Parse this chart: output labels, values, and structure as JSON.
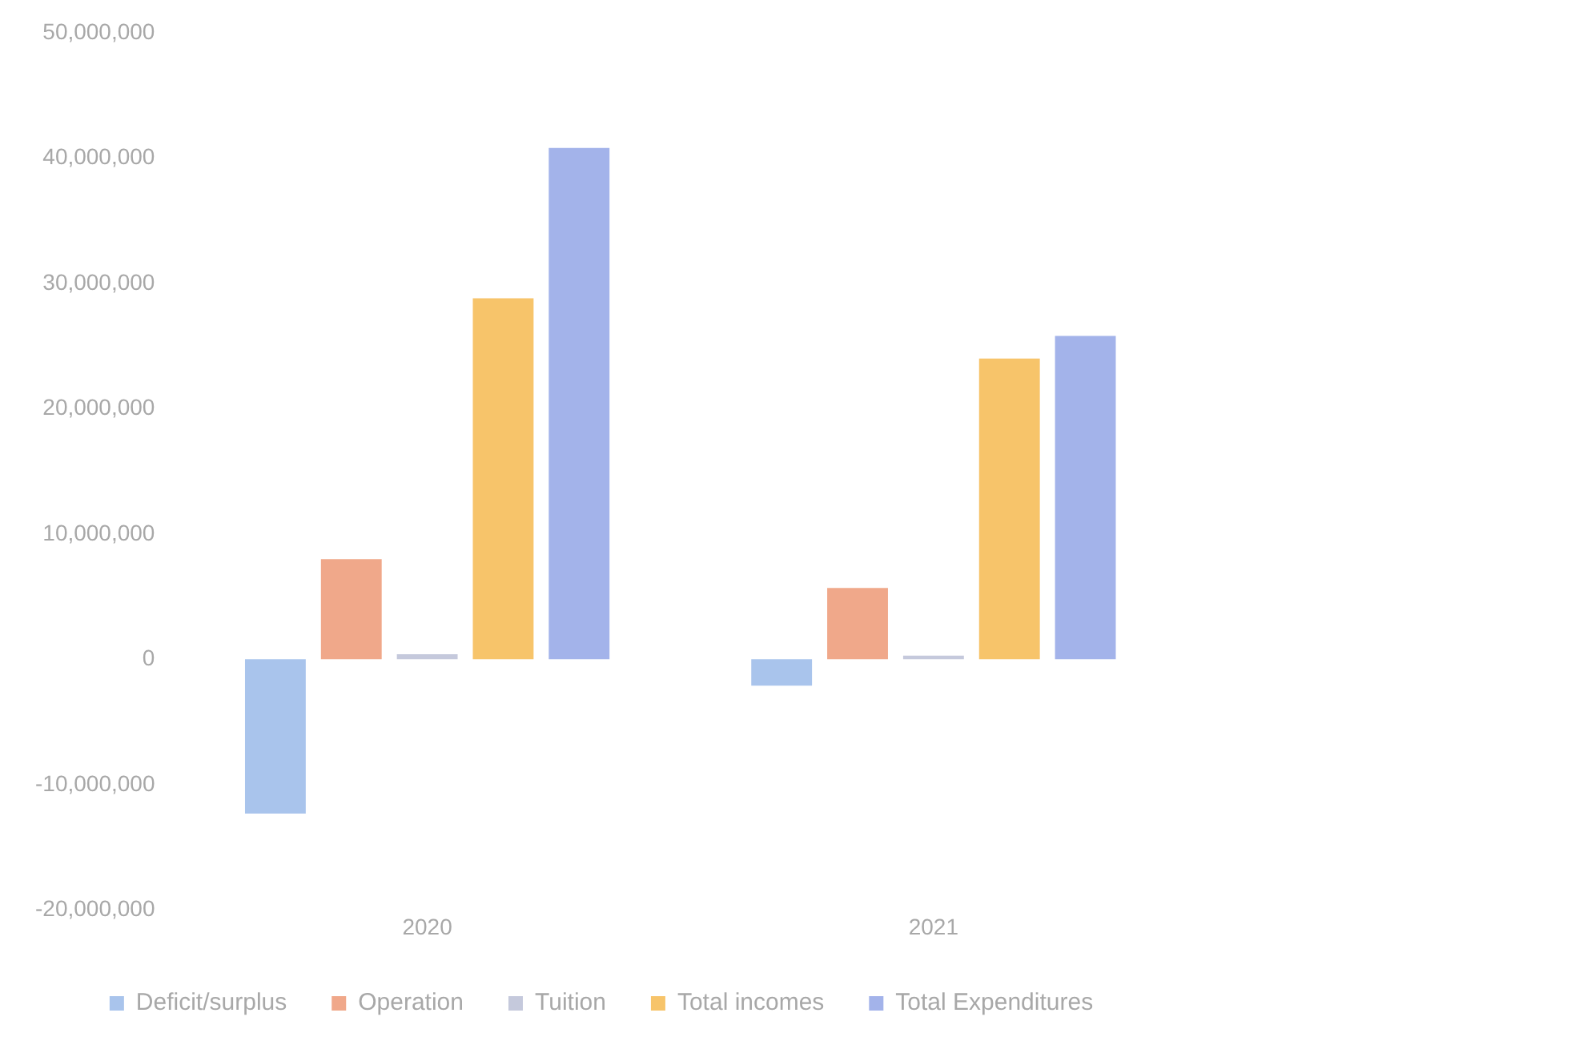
{
  "chart_data": {
    "type": "bar",
    "categories": [
      "2020",
      "2021"
    ],
    "series": [
      {
        "name": "Deficit/surplus",
        "color": "#a9c4ec",
        "values": [
          -12300000,
          -2100000
        ]
      },
      {
        "name": "Operation",
        "color": "#f0a88a",
        "values": [
          8000000,
          5700000
        ]
      },
      {
        "name": "Tuition",
        "color": "#c5c9dc",
        "values": [
          400000,
          300000
        ]
      },
      {
        "name": "Total incomes",
        "color": "#f7c46a",
        "values": [
          28800000,
          24000000
        ]
      },
      {
        "name": "Total Expenditures",
        "color": "#a3b3ea",
        "values": [
          40800000,
          25800000
        ]
      }
    ],
    "ylim": [
      -20000000,
      50000000
    ],
    "yticks": [
      {
        "value": -20000000,
        "label": "-20,000,000"
      },
      {
        "value": -10000000,
        "label": "-10,000,000"
      },
      0,
      {
        "value": 10000000,
        "label": "10,000,000"
      },
      {
        "value": 20000000,
        "label": "20,000,000"
      },
      {
        "value": 30000000,
        "label": "30,000,000"
      },
      {
        "value": 40000000,
        "label": "40,000,000"
      },
      {
        "value": 50000000,
        "label": "50,000,000"
      }
    ],
    "grid": false,
    "legend": "bottom"
  }
}
